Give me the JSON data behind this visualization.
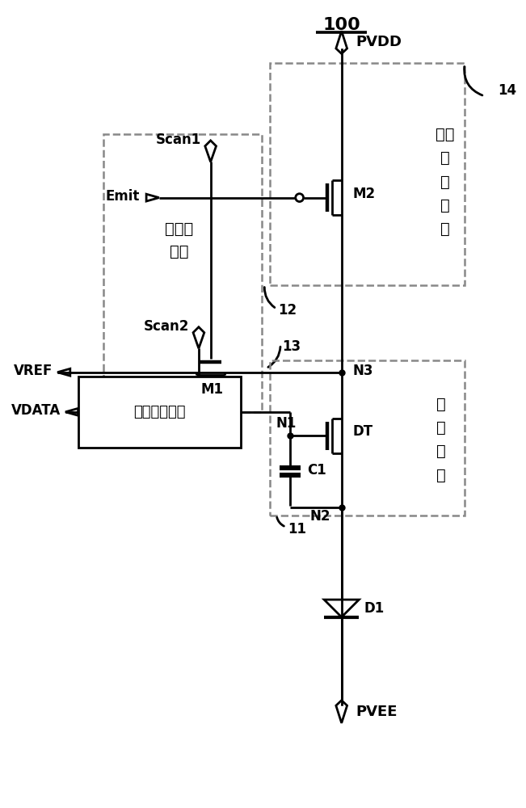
{
  "bg_color": "#ffffff",
  "line_color": "#000000",
  "dashed_color": "#888888",
  "labels": {
    "pvdd": "PVDD",
    "pvee": "PVEE",
    "vref": "VREF",
    "vdata": "VDATA",
    "scan1": "Scan1",
    "scan2": "Scan2",
    "emit": "Emit",
    "m1": "M1",
    "m2": "M2",
    "dt": "DT",
    "d1": "D1",
    "c1": "C1",
    "n1": "N1",
    "n2": "N2",
    "n3": "N3",
    "num_100": "100",
    "num_11": "11",
    "num_12": "12",
    "num_13": "13",
    "num_14": "14",
    "box_init_1": "初始化",
    "box_init_2": "模块",
    "box_data": "数据写入模块",
    "box_emit_1": "发光",
    "box_emit_2": "控",
    "box_emit_3": "制",
    "box_emit_4": "模",
    "box_emit_5": "块",
    "box_drv_1": "驱",
    "box_drv_2": "动",
    "box_drv_3": "模",
    "box_drv_4": "块"
  }
}
